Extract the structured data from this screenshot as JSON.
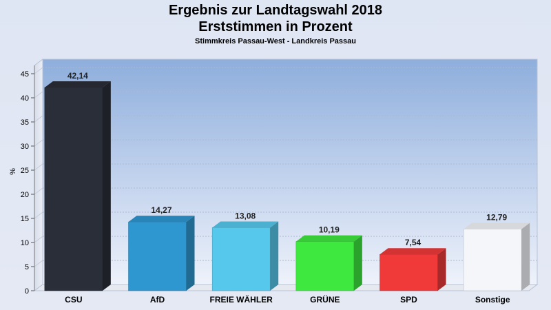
{
  "chart_data": {
    "type": "bar",
    "title": "Ergebnis zur Landtagswahl 2018",
    "subtitle": "Erststimmen in Prozent",
    "subsubtitle": "Stimmkreis Passau-West - Landkreis Passau",
    "ylabel": "%",
    "ylim": [
      0,
      45
    ],
    "yticks": [
      0,
      5,
      10,
      15,
      20,
      25,
      30,
      35,
      40,
      45
    ],
    "categories": [
      "CSU",
      "AfD",
      "FREIE WÄHLER",
      "GRÜNE",
      "SPD",
      "Sonstige"
    ],
    "values": [
      42.14,
      14.27,
      13.08,
      10.19,
      7.54,
      12.79
    ],
    "value_labels": [
      "42,14",
      "14,27",
      "13,08",
      "10,19",
      "7,54",
      "12,79"
    ],
    "colors": [
      "#2a2e38",
      "#2f97d0",
      "#56c8ec",
      "#3ee83e",
      "#f03a3a",
      "#f4f6fa"
    ],
    "grid": true
  }
}
